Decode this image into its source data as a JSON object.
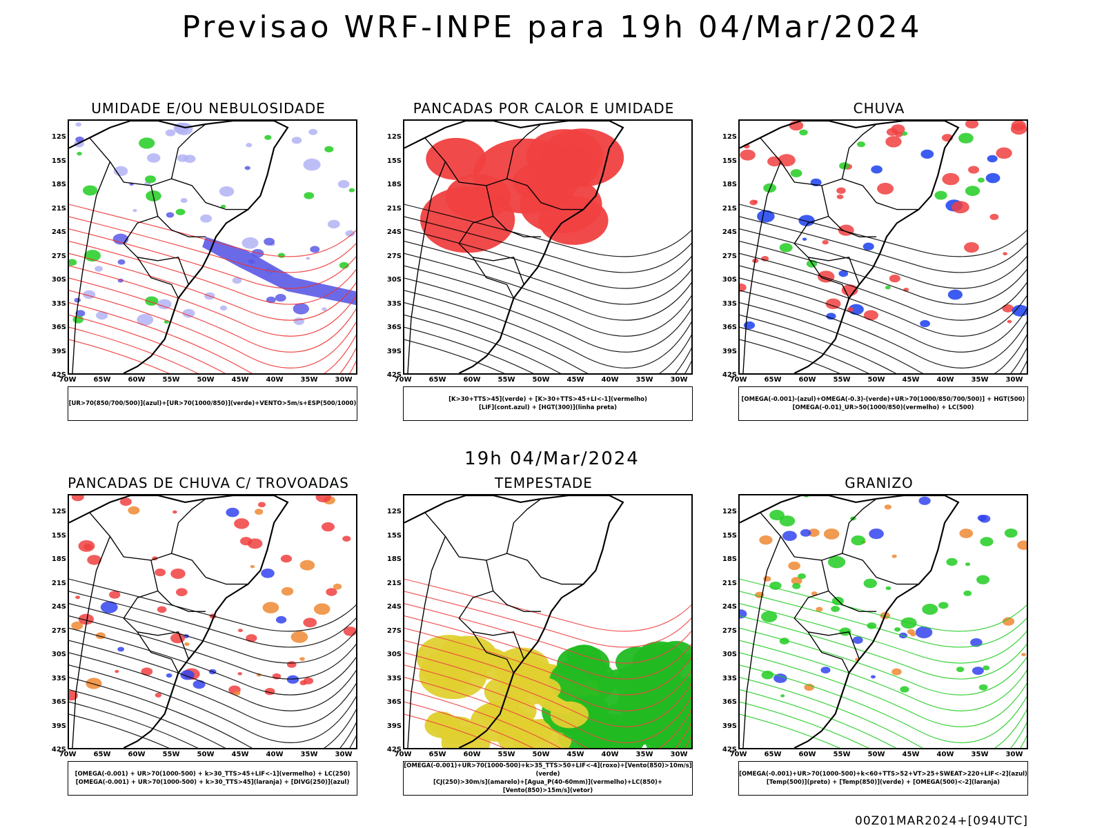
{
  "title": "Previsao WRF-INPE  para 19h 04/Mar/2024",
  "subtitle": "19h 04/Mar/2024",
  "footer": "00Z01MAR2024+[094UTC]",
  "axes": {
    "lat_labels": [
      "12S",
      "15S",
      "18S",
      "21S",
      "24S",
      "27S",
      "30S",
      "33S",
      "36S",
      "39S",
      "42S"
    ],
    "lon_labels": [
      "70W",
      "65W",
      "60W",
      "55W",
      "50W",
      "45W",
      "40W",
      "35W",
      "30W"
    ]
  },
  "panels": [
    {
      "title": "UMIDADE E/OU NEBULOSIDADE",
      "legend": [
        "[UR>70(850/700/500)](azul)+[UR>70(1000/850)](verde)+VENTO>5m/s+ESP(500/1000)"
      ],
      "colors": {
        "main": "#b3b3f5",
        "accent": "#22cc22",
        "dark": "#5a5ae6",
        "lines": "#ee3333"
      }
    },
    {
      "title": "PANCADAS POR CALOR E UMIDADE",
      "legend": [
        "[K>30+TTS>45](verde) + [K>30+TTS>45+LI<-1](vermelho)",
        "[LIF](cont.azul) + [HGT(300)](linha preta)"
      ],
      "colors": {
        "main": "#f04040",
        "accent": "#2e5b5b",
        "dark": "#3344ee",
        "lines": "#000000"
      }
    },
    {
      "title": "CHUVA",
      "legend": [
        "[OMEGA(-0.001)-(azul)+OMEGA(-0.3)-(verde)+UR>70(1000/850/700/500)] + HGT(500)",
        "[OMEGA(-0.01)_UR>50(1000/850)(vermelho) + LC(500)"
      ],
      "colors": {
        "main": "#f04040",
        "accent": "#1a40ee",
        "dark": "#22cc22",
        "lines": "#000000"
      }
    },
    {
      "title": "PANCADAS DE CHUVA C/ TROVOADAS",
      "legend": [
        "[OMEGA(-0.001) + UR>70(1000-500) + k>30_TTS>45+LIF<-1](vermelho) + LC(250)",
        "[OMEGA(-0.001) + UR>70(1000-500) + k>30_TTS>45](laranja) + [DIVG(250)](azul)"
      ],
      "colors": {
        "main": "#f04040",
        "accent": "#ee8833",
        "dark": "#3344ee",
        "lines": "#000000"
      }
    },
    {
      "title": "TEMPESTADE",
      "legend": [
        "[OMEGA(-0.001)+UR>70(1000-500)+k>35_TTS>50+LIF<-4](roxo)+[Vento(850)>10m/s](verde)",
        "[CJ(250)>30m/s](amarelo)+[Agua_P(40-60mm)](vermelho)+LC(850)+[Vento(850)>15m/s](vetor)"
      ],
      "colors": {
        "main": "#e0d030",
        "accent": "#22bb22",
        "dark": "#aa22cc",
        "lines": "#ee4444"
      }
    },
    {
      "title": "GRANIZO",
      "legend": [
        "[OMEGA(-0.001)+UR>70(1000-500)+k<60+TTS>52+VT>25+SWEAT>220+LIF<-2](azul)",
        "[Temp(500)](preto) + [Temp(850)](verde) + [OMEGA(500)<-2](laranja)"
      ],
      "colors": {
        "main": "#22cc22",
        "accent": "#ee8833",
        "dark": "#3344ee",
        "lines": "#22cc22"
      }
    }
  ]
}
